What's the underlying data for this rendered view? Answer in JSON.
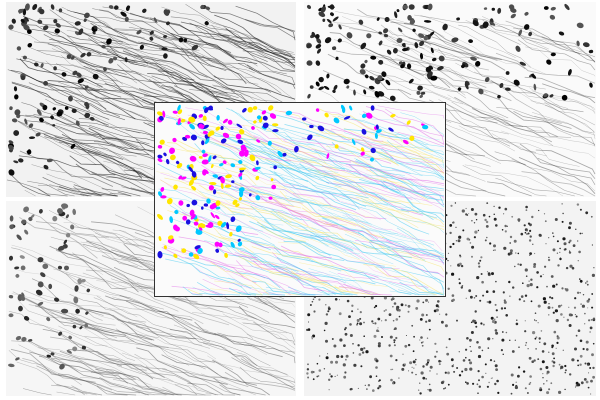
{
  "panels": [
    {
      "id": "top-left",
      "channel_color": "#000000",
      "content": "neurons-and-fibers"
    },
    {
      "id": "top-right",
      "channel_color": "#000000",
      "content": "dense-neurons"
    },
    {
      "id": "bottom-left",
      "channel_color": "#333333",
      "content": "sparse-neurons-and-fibers"
    },
    {
      "id": "bottom-right",
      "channel_color": "#222222",
      "content": "nuclei"
    }
  ],
  "overlay": {
    "content": "merged-channels",
    "colors": [
      "#ff00ff",
      "#1a10e0",
      "#ffe600",
      "#00c8ff"
    ]
  }
}
